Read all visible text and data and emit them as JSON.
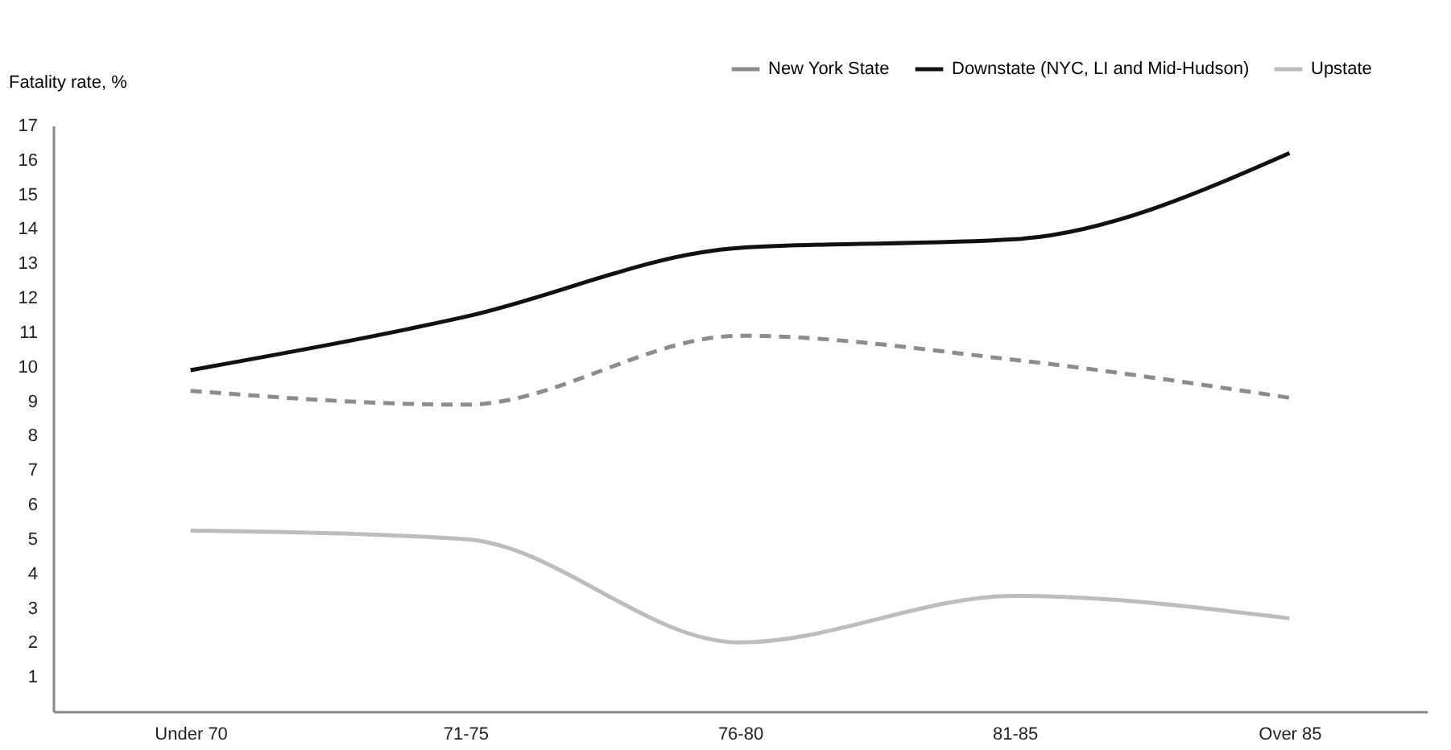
{
  "chart_data": {
    "type": "line",
    "ylabel": "Fatality rate, %",
    "categories": [
      "Under 70",
      "71-75",
      "76-80",
      "81-85",
      "Over 85"
    ],
    "series": [
      {
        "name": "New York State",
        "color": "#8c8c8c",
        "line_style": "dashed",
        "values": [
          9.3,
          8.9,
          10.9,
          10.2,
          9.1
        ]
      },
      {
        "name": "Downstate (NYC, LI and Mid-Hudson)",
        "color": "#111111",
        "line_style": "solid",
        "values": [
          9.9,
          11.45,
          13.45,
          13.7,
          16.2
        ]
      },
      {
        "name": "Upstate",
        "color": "#bdbdbd",
        "line_style": "solid",
        "values": [
          5.25,
          5.0,
          2.0,
          3.35,
          2.7
        ]
      }
    ],
    "ylim": [
      0,
      17
    ],
    "yticks": [
      1,
      2,
      3,
      4,
      5,
      6,
      7,
      8,
      9,
      10,
      11,
      12,
      13,
      14,
      15,
      16,
      17
    ],
    "grid": false,
    "legend": "top right",
    "marker": "none"
  }
}
